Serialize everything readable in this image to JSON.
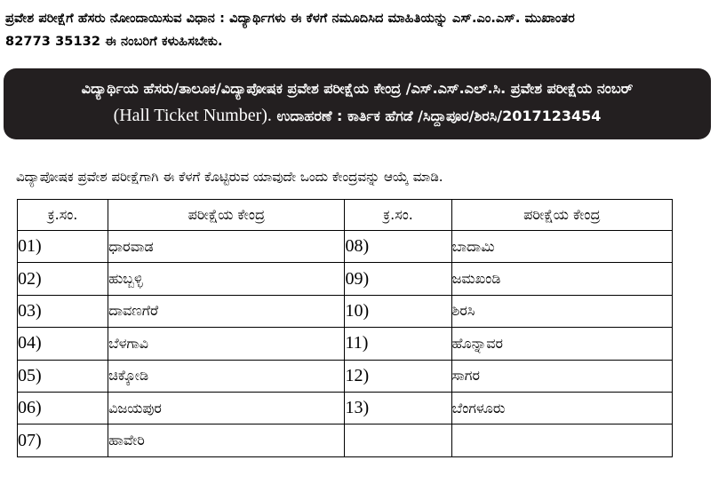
{
  "intro": {
    "line1": "ಪ್ರವೇಶ ಪರೀಕ್ಷೆಗೆ ಹೆಸರು ನೋಂದಾಯಿಸುವ ವಿಧಾನ : ವಿದ್ಯಾರ್ಥಿಗಳು ಈ ಕೆಳಗೆ ನಮೂದಿಸಿದ ಮಾಹಿತಿಯನ್ನು ಎಸ್.ಎಂ.ಎಸ್. ಮುಖಾಂತರ",
    "line2": "82773 35132 ಈ ನಂಬರಿಗೆ ಕಳುಹಿಸಬೇಕು."
  },
  "banner": {
    "line1": "ವಿದ್ಯಾರ್ಥಿಯ ಹೆಸರು/ತಾಲೂಕ/ವಿದ್ಯಾಪೋಷಕ ಪ್ರವೇಶ ಪರೀಕ್ಷೆಯ ಕೇಂದ್ರ /ಎಸ್.ಎಸ್.ಎಲ್.ಸಿ. ಪ್ರವೇಶ ಪರೀಕ್ಷೆಯ ನಂಬರ್",
    "line2_english": "(Hall Ticket Number).",
    "line2_rest": " ಉದಾಹರಣೆ : ಕಾರ್ತಿಕ ಹೆಗಡೆ /ಸಿದ್ದಾಪೂರ/ಶಿರಸಿ/2017123454"
  },
  "instruction": "ವಿದ್ಯಾಪೋಷಕ ಪ್ರವೇಶ ಪರೀಕ್ಷೆಗಾಗಿ ಈ ಕೆಳಗೆ ಕೊಟ್ಟಿರುವ ಯಾವುದೇ ಒಂದು ಕೇಂದ್ರವನ್ನು ಆಯ್ಕೆ ಮಾಡಿ.",
  "table": {
    "headers": [
      "ಕ್ರ.ಸಂ.",
      "ಪರೀಕ್ಷೆಯ ಕೇಂದ್ರ",
      "ಕ್ರ.ಸಂ.",
      "ಪರೀಕ್ಷೆಯ ಕೇಂದ್ರ"
    ],
    "rows": [
      {
        "no1": "01)",
        "name1": "ಧಾರವಾಡ",
        "no2": "08)",
        "name2": "ಬಾದಾಮಿ"
      },
      {
        "no1": "02)",
        "name1": "ಹುಬ್ಬಳ್ಳಿ",
        "no2": "09)",
        "name2": "ಜಮಖಂಡಿ"
      },
      {
        "no1": "03)",
        "name1": "ದಾವಣಗೆರೆ",
        "no2": "10)",
        "name2": "ಶಿರಸಿ"
      },
      {
        "no1": "04)",
        "name1": "ಬೆಳಗಾವಿ",
        "no2": "11)",
        "name2": "ಹೊನ್ನಾವರ"
      },
      {
        "no1": "05)",
        "name1": "ಚಿಕ್ಕೋಡಿ",
        "no2": "12)",
        "name2": "ಸಾಗರ"
      },
      {
        "no1": "06)",
        "name1": "ವಿಜಯಪುರ",
        "no2": "13)",
        "name2": "ಬೆಂಗಳೂರು"
      },
      {
        "no1": "07)",
        "name1": "ಹಾವೇರಿ",
        "no2": "",
        "name2": ""
      }
    ]
  }
}
